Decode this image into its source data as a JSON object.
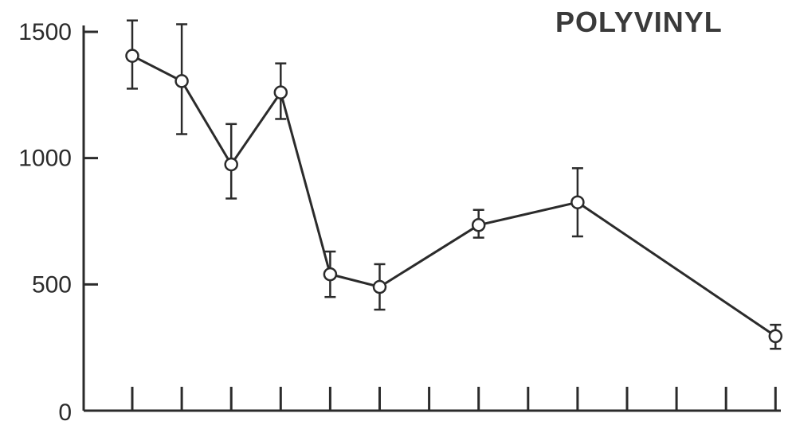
{
  "chart_data": {
    "type": "line",
    "title": "POLYVINYL",
    "xlabel": "",
    "ylabel": "",
    "ylim": [
      0,
      1500
    ],
    "yticks": [
      0,
      500,
      1000,
      1500
    ],
    "ytick_labels": [
      "0",
      "500",
      "1000",
      "1500"
    ],
    "x_tick_count": 14,
    "grid": false,
    "series": [
      {
        "x": [
          1,
          2,
          3,
          4,
          5,
          6,
          8,
          10,
          14
        ],
        "values": [
          1405,
          1305,
          975,
          1260,
          540,
          490,
          735,
          825,
          295
        ],
        "error_low": [
          1275,
          1095,
          840,
          1155,
          450,
          400,
          685,
          690,
          245
        ],
        "error_high": [
          1545,
          1530,
          1135,
          1375,
          630,
          580,
          795,
          960,
          340
        ]
      }
    ]
  }
}
